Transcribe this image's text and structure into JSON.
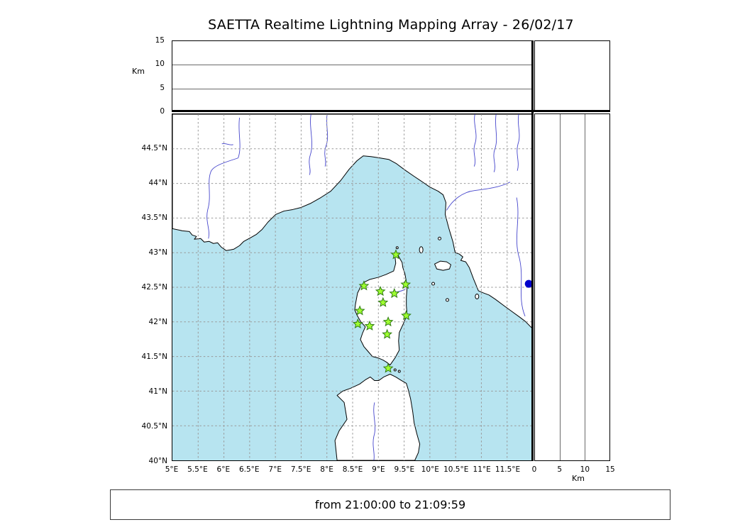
{
  "title": "SAETTA Realtime Lightning Mapping Array - 26/02/17",
  "status": {
    "text": "from 21:00:00 to 21:09:59"
  },
  "colors": {
    "sea": "#b7e4f0",
    "land": "#ffffff",
    "coast": "#000000",
    "river": "#4545cc",
    "grid": "#999999",
    "station_fill": "#9fff30",
    "station_edge": "#2f7a12",
    "event_dot": "#0000cc",
    "frame": "#000000"
  },
  "altitude_axis": {
    "label": "Km",
    "min": 0,
    "max": 15,
    "ticks": [
      0,
      5,
      10,
      15
    ]
  },
  "map_panel": {
    "lon_min": 5,
    "lon_max": 12,
    "lat_min": 40,
    "lat_max": 45,
    "lon_ticks": [
      5,
      5.5,
      6,
      6.5,
      7,
      7.5,
      8,
      8.5,
      9,
      9.5,
      10,
      10.5,
      11,
      11.5
    ],
    "lon_tick_labels": [
      "5°E",
      "5.5°E",
      "6°E",
      "6.5°E",
      "7°E",
      "7.5°E",
      "8°E",
      "8.5°E",
      "9°E",
      "9.5°E",
      "10°E",
      "10.5°E",
      "11°E",
      "11.5°E"
    ],
    "lat_ticks": [
      44.5,
      44,
      43.5,
      43,
      42.5,
      42,
      41.5,
      41,
      40.5,
      40
    ],
    "lat_tick_labels": [
      "44.5°N",
      "44°N",
      "43.5°N",
      "43°N",
      "42.5°N",
      "42°N",
      "41.5°N",
      "41°N",
      "40.5°N",
      "40°N"
    ]
  },
  "chart_data": {
    "type": "scatter",
    "title": "SAETTA Realtime Lightning Mapping Array - 26/02/17",
    "time_window": "from 21:00:00 to 21:09:59",
    "map_extent": {
      "lon": [
        5,
        12
      ],
      "lat": [
        40,
        45
      ]
    },
    "altitude_axis_km": {
      "min": 0,
      "max": 15,
      "ticks": [
        0,
        5,
        10,
        15
      ],
      "label": "Km"
    },
    "graticule_step_deg": 0.5,
    "series": [
      {
        "name": "SAETTA sensor stations",
        "marker": "star",
        "color": "#9fff30",
        "points": [
          {
            "lon": 9.34,
            "lat": 42.97
          },
          {
            "lon": 8.72,
            "lat": 42.52
          },
          {
            "lon": 9.04,
            "lat": 42.44
          },
          {
            "lon": 9.31,
            "lat": 42.41
          },
          {
            "lon": 9.53,
            "lat": 42.54
          },
          {
            "lon": 9.09,
            "lat": 42.28
          },
          {
            "lon": 8.64,
            "lat": 42.16
          },
          {
            "lon": 9.54,
            "lat": 42.09
          },
          {
            "lon": 8.6,
            "lat": 41.97
          },
          {
            "lon": 8.83,
            "lat": 41.94
          },
          {
            "lon": 9.19,
            "lat": 42.0
          },
          {
            "lon": 9.17,
            "lat": 41.82
          },
          {
            "lon": 9.19,
            "lat": 41.33
          }
        ]
      },
      {
        "name": "detected source",
        "marker": "circle",
        "color": "#0000cc",
        "points": [
          {
            "lon": 11.92,
            "lat": 42.55
          }
        ]
      }
    ]
  }
}
